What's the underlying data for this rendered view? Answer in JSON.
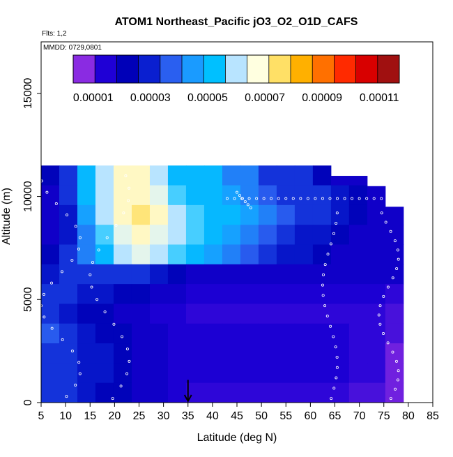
{
  "chart_data": {
    "type": "heatmap",
    "title": "ATOM1 Northeast_Pacific jO3_O2_O1D_CAFS",
    "subtitle_flights": "Flts: 1,2",
    "subtitle_dates": "MMDD: 0729,0801",
    "xlabel": "Latitude (deg N)",
    "ylabel": "Altitude (m)",
    "xlim": [
      5,
      85
    ],
    "ylim": [
      0,
      17500
    ],
    "x_ticks": [
      "5",
      "10",
      "15",
      "20",
      "25",
      "30",
      "35",
      "40",
      "45",
      "50",
      "55",
      "60",
      "65",
      "70",
      "75",
      "80",
      "85"
    ],
    "y_ticks": [
      "0",
      "5000",
      "10000",
      "15000"
    ],
    "colorbar": {
      "range": [
        3e-06,
        0.000117
      ],
      "tick_labels": [
        "0.00001",
        "0.00003",
        "0.00005",
        "0.00007",
        "0.00009",
        "0.00011"
      ],
      "colors": [
        "#8a2be2",
        "#1f00d6",
        "#0000b8",
        "#0a1fd0",
        "#2a5ff0",
        "#1a9bff",
        "#00c0ff",
        "#b8e4ff",
        "#ffffe0",
        "#ffe066",
        "#ffb000",
        "#ff7000",
        "#ff2a00",
        "#d80000",
        "#a01010"
      ]
    },
    "marker_latitude": 35,
    "values": [
      [
        2e-05,
        3e-05,
        5e-05,
        6e-05,
        7e-05,
        7e-05,
        6e-05,
        5e-05,
        5e-05,
        5e-05,
        4e-05,
        4e-05,
        3e-05,
        3e-05,
        3e-05,
        2e-05,
        1.5e-05,
        1.5e-05,
        1.5e-05,
        1.5e-05
      ],
      [
        1.5e-05,
        3e-05,
        5e-05,
        6e-05,
        7e-05,
        7e-05,
        6.5e-05,
        5.5e-05,
        5e-05,
        5e-05,
        4.5e-05,
        4e-05,
        3.5e-05,
        3e-05,
        3e-05,
        3e-05,
        2.5e-05,
        2e-05,
        1.5e-05,
        1.5e-05
      ],
      [
        1.5e-05,
        2.5e-05,
        4.5e-05,
        6e-05,
        7e-05,
        7.5e-05,
        7e-05,
        6e-05,
        5.5e-05,
        5e-05,
        5e-05,
        4.5e-05,
        4e-05,
        3.5e-05,
        3e-05,
        3e-05,
        2.5e-05,
        2e-05,
        1.5e-05,
        1.5e-05
      ],
      [
        1.5e-05,
        2.5e-05,
        4e-05,
        5.5e-05,
        6.5e-05,
        7e-05,
        6.5e-05,
        6e-05,
        5.5e-05,
        5e-05,
        4.5e-05,
        4e-05,
        3.5e-05,
        3e-05,
        2.5e-05,
        2.5e-05,
        2e-05,
        1.5e-05,
        1.5e-05,
        1.5e-05
      ],
      [
        2e-05,
        3e-05,
        4e-05,
        5e-05,
        6e-05,
        6.5e-05,
        6e-05,
        5.5e-05,
        5e-05,
        4.5e-05,
        4e-05,
        3.5e-05,
        3e-05,
        2.5e-05,
        2.5e-05,
        2e-05,
        1.5e-05,
        1.5e-05,
        1.5e-05,
        1.5e-05
      ],
      [
        2.5e-05,
        3e-05,
        3e-05,
        3e-05,
        3e-05,
        3e-05,
        2.5e-05,
        2e-05,
        1.5e-05,
        1.5e-05,
        1.5e-05,
        1.5e-05,
        1.5e-05,
        1.5e-05,
        1.5e-05,
        1.5e-05,
        1.5e-05,
        1.5e-05,
        1.5e-05,
        1.5e-05
      ],
      [
        3e-05,
        3e-05,
        2.5e-05,
        2.5e-05,
        2e-05,
        2e-05,
        1.5e-05,
        1.5e-05,
        1.2e-05,
        1.2e-05,
        1.2e-05,
        1.2e-05,
        1.2e-05,
        1.2e-05,
        1.2e-05,
        1.2e-05,
        1.2e-05,
        1.2e-05,
        1.2e-05,
        1e-05
      ],
      [
        3e-05,
        2.5e-05,
        2e-05,
        2e-05,
        1.5e-05,
        1.5e-05,
        1.2e-05,
        1.2e-05,
        1e-05,
        1e-05,
        1e-05,
        1e-05,
        1e-05,
        1e-05,
        1e-05,
        1e-05,
        1e-05,
        1e-05,
        1e-05,
        8e-06
      ],
      [
        3.5e-05,
        3e-05,
        2.5e-05,
        2e-05,
        2e-05,
        1.5e-05,
        1.5e-05,
        1.2e-05,
        1.2e-05,
        1.2e-05,
        1.2e-05,
        1.2e-05,
        1.2e-05,
        1.2e-05,
        1.2e-05,
        1.2e-05,
        1.2e-05,
        1e-05,
        1e-05,
        8e-06
      ],
      [
        3e-05,
        3e-05,
        2.5e-05,
        2.5e-05,
        2e-05,
        1.5e-05,
        1.5e-05,
        1.2e-05,
        1.2e-05,
        1.2e-05,
        1.2e-05,
        1.2e-05,
        1.2e-05,
        1.2e-05,
        1.2e-05,
        1.2e-05,
        1.2e-05,
        1e-05,
        1e-05,
        5e-06
      ],
      [
        3e-05,
        3e-05,
        2.5e-05,
        2.5e-05,
        2e-05,
        1.5e-05,
        1.5e-05,
        1.2e-05,
        1.2e-05,
        1.2e-05,
        1.2e-05,
        1.2e-05,
        1.2e-05,
        1.2e-05,
        1.2e-05,
        1.2e-05,
        1.2e-05,
        1e-05,
        1e-05,
        5e-06
      ],
      [
        3e-05,
        3e-05,
        2.5e-05,
        2e-05,
        2e-05,
        1.5e-05,
        1.5e-05,
        1.2e-05,
        1e-05,
        1e-05,
        1e-05,
        1e-05,
        1e-05,
        1e-05,
        1e-05,
        1e-05,
        1e-05,
        8e-06,
        8e-06,
        5e-06
      ]
    ]
  }
}
